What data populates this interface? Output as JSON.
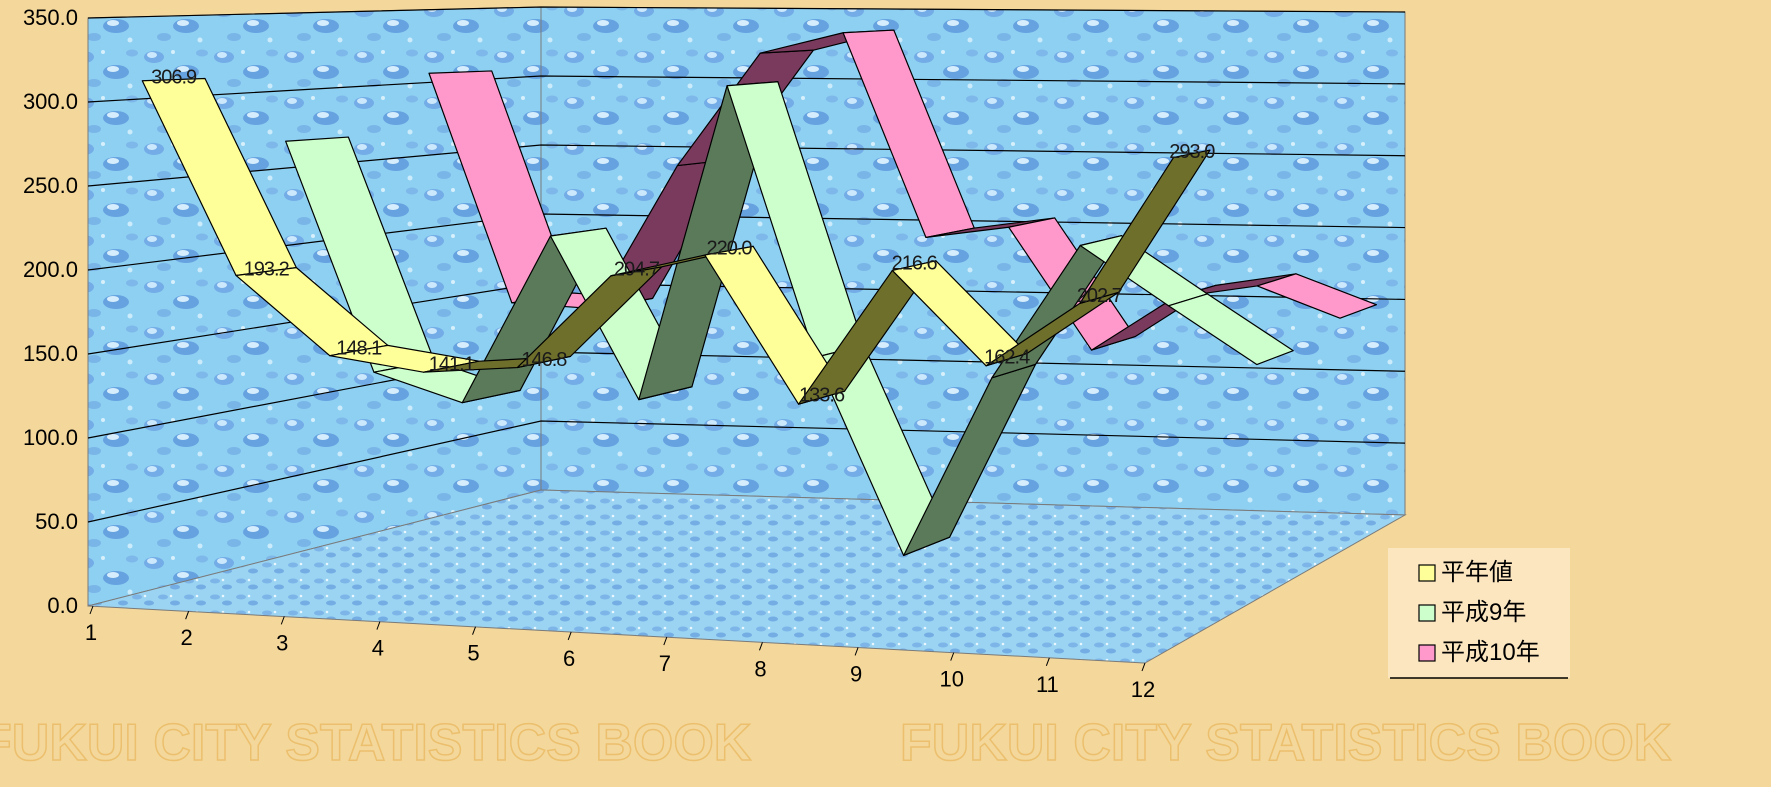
{
  "chart_data": {
    "type": "line",
    "style": "3d-ribbon",
    "title": "",
    "xlabel": "",
    "ylabel": "",
    "categories": [
      "1",
      "2",
      "3",
      "4",
      "5",
      "6",
      "7",
      "8",
      "9",
      "10",
      "11",
      "12"
    ],
    "ylim": [
      0,
      350
    ],
    "y_ticks": [
      "0.0",
      "50.0",
      "100.0",
      "150.0",
      "200.0",
      "250.0",
      "300.0",
      "350.0"
    ],
    "grid": true,
    "legend_position": "bottom-right",
    "series": [
      {
        "name": "平年値",
        "color": "#ffff99",
        "dark": "#6f6f2c",
        "values": [
          306.9,
          193.2,
          148.1,
          141.1,
          146.8,
          204.7,
          220.0,
          133.6,
          216.6,
          162.4,
          202.7,
          293.0
        ],
        "labels_shown": true
      },
      {
        "name": "平成9年",
        "color": "#ccffcc",
        "dark": "#5a7a5a",
        "values": [
          265,
          120,
          103,
          212,
          110,
          313,
          142,
          18,
          134,
          221,
          185,
          150
        ],
        "labels_shown": false
      },
      {
        "name": "平成10年",
        "color": "#ff99cc",
        "dark": "#7a3a5e",
        "values": [
          305,
          150,
          148,
          248,
          327,
          343,
          205,
          214,
          132,
          170,
          180,
          160
        ],
        "labels_shown": false
      }
    ]
  },
  "watermark": "FUKUI CITY STATISTICS BOOK"
}
